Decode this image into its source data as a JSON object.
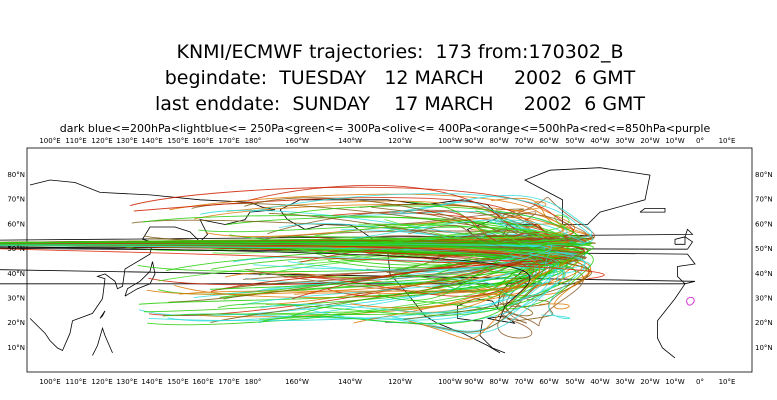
{
  "header": {
    "title": "KNMI/ECMWF trajectories:  173 from:170302_B",
    "begindate": "begindate:  TUESDAY   12 MARCH     2002  6 GMT",
    "enddate": "last enddate:  SUNDAY    17 MARCH     2002  6 GMT",
    "legend": "dark blue<=200hPa<lightblue<= 250Pa<green<= 300Pa<olive<= 400Pa<orange<=500hPa<red<=850hPa<purple"
  },
  "map": {
    "lon_labels": [
      "100°E",
      "110°E",
      "120°E",
      "130°E",
      "140°E",
      "150°E",
      "160°E",
      "170°E",
      "180°",
      "160°W",
      "140°W",
      "120°W",
      "100°W",
      "90°W",
      "80°W",
      "70°W",
      "60°W",
      "50°W",
      "40°W",
      "30°W",
      "20°W",
      "10°W",
      "0°",
      "10°E"
    ],
    "lat_labels": [
      "80°N",
      "70°N",
      "60°N",
      "50°N",
      "40°N",
      "30°N",
      "20°N",
      "10°N"
    ]
  }
}
